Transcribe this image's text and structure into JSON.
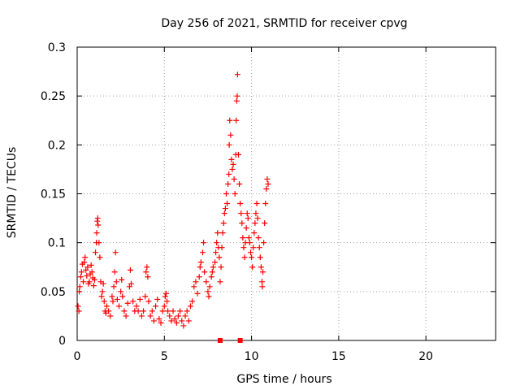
{
  "chart_data": {
    "type": "scatter",
    "title": "Day 256 of 2021, SRMTID for receiver cpvg",
    "xlabel": "GPS time / hours",
    "ylabel": "SRMTID / TECUs",
    "xlim": [
      0,
      24
    ],
    "ylim": [
      0,
      0.3
    ],
    "xticks": [
      0,
      5,
      10,
      15,
      20
    ],
    "yticks": [
      0,
      0.05,
      0.1,
      0.15,
      0.2,
      0.25,
      0.3
    ],
    "xtick_labels": [
      "0",
      "5",
      "10",
      "15",
      "20"
    ],
    "ytick_labels": [
      "0",
      "0.05",
      "0.1",
      "0.15",
      "0.2",
      "0.25",
      "0.3"
    ],
    "grid": true,
    "marker": "+",
    "color": "#ff0000",
    "baseline_markers": [
      {
        "x": 8.2,
        "y": 0
      },
      {
        "x": 9.35,
        "y": 0
      }
    ],
    "series": [
      {
        "name": "SRMTID",
        "points": [
          [
            0.05,
            0.035
          ],
          [
            0.1,
            0.03
          ],
          [
            0.12,
            0.05
          ],
          [
            0.15,
            0.055
          ],
          [
            0.2,
            0.065
          ],
          [
            0.25,
            0.07
          ],
          [
            0.3,
            0.078
          ],
          [
            0.35,
            0.06
          ],
          [
            0.4,
            0.08
          ],
          [
            0.45,
            0.085
          ],
          [
            0.5,
            0.072
          ],
          [
            0.55,
            0.066
          ],
          [
            0.6,
            0.075
          ],
          [
            0.65,
            0.058
          ],
          [
            0.7,
            0.06
          ],
          [
            0.75,
            0.068
          ],
          [
            0.8,
            0.077
          ],
          [
            0.85,
            0.07
          ],
          [
            0.9,
            0.064
          ],
          [
            0.95,
            0.056
          ],
          [
            1.0,
            0.062
          ],
          [
            1.05,
            0.09
          ],
          [
            1.1,
            0.1
          ],
          [
            1.12,
            0.11
          ],
          [
            1.15,
            0.122
          ],
          [
            1.18,
            0.125
          ],
          [
            1.2,
            0.118
          ],
          [
            1.25,
            0.1
          ],
          [
            1.3,
            0.085
          ],
          [
            1.35,
            0.06
          ],
          [
            1.4,
            0.045
          ],
          [
            1.45,
            0.05
          ],
          [
            1.5,
            0.058
          ],
          [
            1.55,
            0.04
          ],
          [
            1.6,
            0.03
          ],
          [
            1.65,
            0.028
          ],
          [
            1.7,
            0.035
          ],
          [
            1.8,
            0.03
          ],
          [
            1.9,
            0.025
          ],
          [
            2.0,
            0.045
          ],
          [
            2.05,
            0.04
          ],
          [
            2.1,
            0.055
          ],
          [
            2.15,
            0.07
          ],
          [
            2.2,
            0.09
          ],
          [
            2.25,
            0.06
          ],
          [
            2.3,
            0.042
          ],
          [
            2.4,
            0.035
          ],
          [
            2.5,
            0.05
          ],
          [
            2.55,
            0.062
          ],
          [
            2.6,
            0.045
          ],
          [
            2.7,
            0.03
          ],
          [
            2.8,
            0.025
          ],
          [
            2.9,
            0.038
          ],
          [
            3.0,
            0.055
          ],
          [
            3.05,
            0.072
          ],
          [
            3.1,
            0.058
          ],
          [
            3.2,
            0.04
          ],
          [
            3.3,
            0.03
          ],
          [
            3.4,
            0.035
          ],
          [
            3.5,
            0.03
          ],
          [
            3.6,
            0.042
          ],
          [
            3.7,
            0.025
          ],
          [
            3.8,
            0.03
          ],
          [
            3.9,
            0.045
          ],
          [
            3.95,
            0.07
          ],
          [
            4.0,
            0.075
          ],
          [
            4.05,
            0.065
          ],
          [
            4.1,
            0.04
          ],
          [
            4.2,
            0.025
          ],
          [
            4.3,
            0.03
          ],
          [
            4.4,
            0.02
          ],
          [
            4.5,
            0.035
          ],
          [
            4.6,
            0.042
          ],
          [
            4.7,
            0.022
          ],
          [
            4.8,
            0.018
          ],
          [
            4.9,
            0.03
          ],
          [
            5.0,
            0.035
          ],
          [
            5.05,
            0.045
          ],
          [
            5.1,
            0.048
          ],
          [
            5.15,
            0.04
          ],
          [
            5.2,
            0.03
          ],
          [
            5.3,
            0.025
          ],
          [
            5.4,
            0.02
          ],
          [
            5.5,
            0.03
          ],
          [
            5.6,
            0.022
          ],
          [
            5.7,
            0.018
          ],
          [
            5.8,
            0.025
          ],
          [
            5.9,
            0.03
          ],
          [
            6.0,
            0.02
          ],
          [
            6.1,
            0.015
          ],
          [
            6.2,
            0.025
          ],
          [
            6.3,
            0.03
          ],
          [
            6.4,
            0.02
          ],
          [
            6.5,
            0.035
          ],
          [
            6.6,
            0.04
          ],
          [
            6.7,
            0.055
          ],
          [
            6.8,
            0.06
          ],
          [
            6.9,
            0.048
          ],
          [
            7.0,
            0.065
          ],
          [
            7.05,
            0.075
          ],
          [
            7.1,
            0.08
          ],
          [
            7.2,
            0.09
          ],
          [
            7.25,
            0.1
          ],
          [
            7.3,
            0.07
          ],
          [
            7.4,
            0.06
          ],
          [
            7.5,
            0.05
          ],
          [
            7.55,
            0.045
          ],
          [
            7.6,
            0.055
          ],
          [
            7.7,
            0.065
          ],
          [
            7.75,
            0.07
          ],
          [
            7.8,
            0.075
          ],
          [
            7.9,
            0.08
          ],
          [
            7.95,
            0.09
          ],
          [
            8.0,
            0.1
          ],
          [
            8.05,
            0.11
          ],
          [
            8.1,
            0.095
          ],
          [
            8.15,
            0.085
          ],
          [
            8.2,
            0.06
          ],
          [
            8.25,
            0.075
          ],
          [
            8.3,
            0.095
          ],
          [
            8.35,
            0.11
          ],
          [
            8.4,
            0.12
          ],
          [
            8.45,
            0.13
          ],
          [
            8.5,
            0.135
          ],
          [
            8.55,
            0.15
          ],
          [
            8.6,
            0.14
          ],
          [
            8.65,
            0.16
          ],
          [
            8.7,
            0.17
          ],
          [
            8.72,
            0.2
          ],
          [
            8.75,
            0.225
          ],
          [
            8.8,
            0.21
          ],
          [
            8.85,
            0.185
          ],
          [
            8.9,
            0.175
          ],
          [
            8.95,
            0.18
          ],
          [
            9.0,
            0.165
          ],
          [
            9.05,
            0.15
          ],
          [
            9.1,
            0.19
          ],
          [
            9.12,
            0.225
          ],
          [
            9.15,
            0.245
          ],
          [
            9.18,
            0.25
          ],
          [
            9.2,
            0.272
          ],
          [
            9.25,
            0.19
          ],
          [
            9.3,
            0.16
          ],
          [
            9.35,
            0.14
          ],
          [
            9.4,
            0.13
          ],
          [
            9.45,
            0.12
          ],
          [
            9.5,
            0.105
          ],
          [
            9.55,
            0.095
          ],
          [
            9.6,
            0.085
          ],
          [
            9.65,
            0.1
          ],
          [
            9.7,
            0.115
          ],
          [
            9.75,
            0.13
          ],
          [
            9.8,
            0.125
          ],
          [
            9.85,
            0.105
          ],
          [
            9.9,
            0.1
          ],
          [
            9.95,
            0.09
          ],
          [
            10.0,
            0.085
          ],
          [
            10.05,
            0.075
          ],
          [
            10.1,
            0.095
          ],
          [
            10.15,
            0.11
          ],
          [
            10.2,
            0.12
          ],
          [
            10.25,
            0.13
          ],
          [
            10.3,
            0.14
          ],
          [
            10.35,
            0.125
          ],
          [
            10.4,
            0.105
          ],
          [
            10.45,
            0.095
          ],
          [
            10.5,
            0.085
          ],
          [
            10.55,
            0.075
          ],
          [
            10.6,
            0.06
          ],
          [
            10.62,
            0.055
          ],
          [
            10.65,
            0.07
          ],
          [
            10.7,
            0.1
          ],
          [
            10.75,
            0.12
          ],
          [
            10.8,
            0.14
          ],
          [
            10.85,
            0.155
          ],
          [
            10.9,
            0.165
          ],
          [
            10.95,
            0.16
          ]
        ]
      }
    ]
  }
}
